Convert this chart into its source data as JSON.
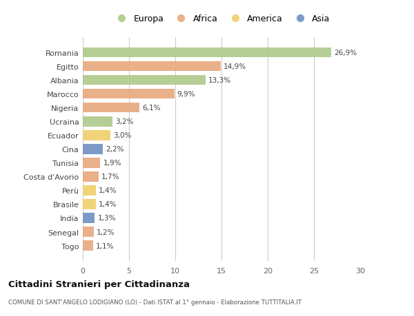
{
  "countries": [
    "Romania",
    "Egitto",
    "Albania",
    "Marocco",
    "Nigeria",
    "Ucraina",
    "Ecuador",
    "Cina",
    "Tunisia",
    "Costa d'Avorio",
    "Perù",
    "Brasile",
    "India",
    "Senegal",
    "Togo"
  ],
  "values": [
    26.9,
    14.9,
    13.3,
    9.9,
    6.1,
    3.2,
    3.0,
    2.2,
    1.9,
    1.7,
    1.4,
    1.4,
    1.3,
    1.2,
    1.1
  ],
  "labels": [
    "26,9%",
    "14,9%",
    "13,3%",
    "9,9%",
    "6,1%",
    "3,2%",
    "3,0%",
    "2,2%",
    "1,9%",
    "1,7%",
    "1,4%",
    "1,4%",
    "1,3%",
    "1,2%",
    "1,1%"
  ],
  "continent": [
    "Europa",
    "Africa",
    "Europa",
    "Africa",
    "Africa",
    "Europa",
    "America",
    "Asia",
    "Africa",
    "Africa",
    "America",
    "America",
    "Asia",
    "Africa",
    "Africa"
  ],
  "colors": {
    "Europa": "#adc98a",
    "Africa": "#e8a87c",
    "America": "#f0d06a",
    "Asia": "#6f8fc0"
  },
  "title": "Cittadini Stranieri per Cittadinanza",
  "subtitle": "COMUNE DI SANT'ANGELO LODIGIANO (LO) - Dati ISTAT al 1° gennaio - Elaborazione TUTTITALIA.IT",
  "xlim": [
    0,
    30
  ],
  "xticks": [
    0,
    5,
    10,
    15,
    20,
    25,
    30
  ],
  "background_color": "#ffffff"
}
